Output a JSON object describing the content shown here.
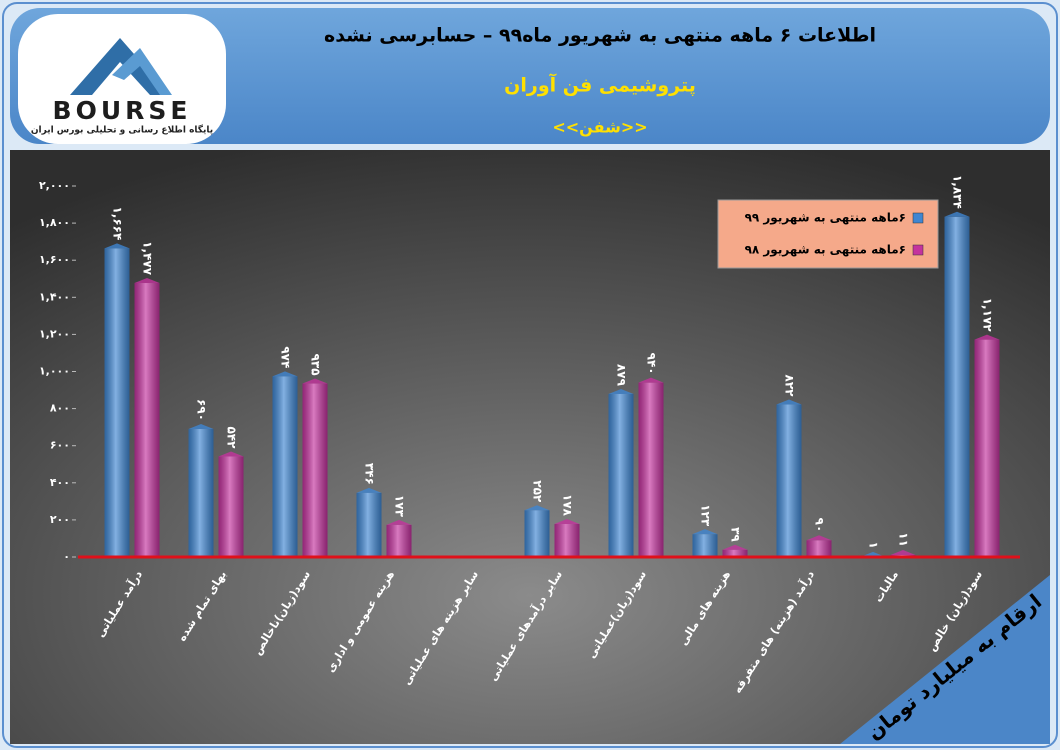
{
  "logo": {
    "brand": "BOURSE",
    "tagline": "پایگاه اطلاع رسانی و تحلیلی بورس ایران"
  },
  "chart_data": {
    "type": "bar",
    "title": "اطلاعات ۶ ماهه منتهی به شهریور ماه۹۹ – حسابرسی نشده",
    "subtitle": "پتروشیمی فن آوران",
    "symbol": "<<شفن>>",
    "annotation": "ارقام به میلیارد تومان",
    "categories": [
      "درآمد عملیاتی",
      "بهای تمام شده",
      "سود(زیان)ناخالص",
      "هزینه عمومی و اداری",
      "سایر هزینه های عملیاتی",
      "سایر درآمدهای عملیاتی",
      "سود(زیان)عملیاتی",
      "هزینه های مالی",
      "درآمد (هزینه) های متفرقه",
      "مالیات",
      "سود(زیان) خالص"
    ],
    "series": [
      {
        "name": "۶ماهه منتهی به شهریور ۹۹",
        "color": "#3f86d2",
        "values": [
          1664,
          690,
          974,
          346,
          null,
          252,
          879,
          123,
          822,
          1,
          1834
        ],
        "value_labels": [
          "۱,۶۶۴",
          "۶۹۰",
          "۹۷۴",
          "۳۴۶",
          null,
          "۲۵۲",
          "۸۷۹",
          "۱۲۳",
          "۸۲۲",
          "۱",
          "۱,۸۳۴"
        ]
      },
      {
        "name": "۶ماهه منتهی به شهریور ۹۸",
        "color": "#c4329e",
        "values": [
          1477,
          542,
          935,
          173,
          null,
          178,
          940,
          39,
          90,
          11,
          1172
        ],
        "value_labels": [
          "۱,۴۷۷",
          "۵۴۲",
          "۹۳۵",
          "۱۷۳",
          null,
          "۱۷۸",
          "۹۴۰",
          "۳۹",
          "۹۰",
          "۱۱",
          "۱,۱۷۲"
        ]
      }
    ],
    "ylim": [
      0,
      2000
    ],
    "yticks": [
      {
        "value": 0,
        "label": "۰"
      },
      {
        "value": 200,
        "label": "۲۰۰"
      },
      {
        "value": 400,
        "label": "۴۰۰"
      },
      {
        "value": 600,
        "label": "۶۰۰"
      },
      {
        "value": 800,
        "label": "۸۰۰"
      },
      {
        "value": 1000,
        "label": "۱,۰۰۰"
      },
      {
        "value": 1200,
        "label": "۱,۲۰۰"
      },
      {
        "value": 1400,
        "label": "۱,۴۰۰"
      },
      {
        "value": 1600,
        "label": "۱,۶۰۰"
      },
      {
        "value": 1800,
        "label": "۱,۸۰۰"
      },
      {
        "value": 2000,
        "label": "۲,۰۰۰"
      }
    ],
    "baseline_color": "#e0101a",
    "legend": "top-right"
  }
}
